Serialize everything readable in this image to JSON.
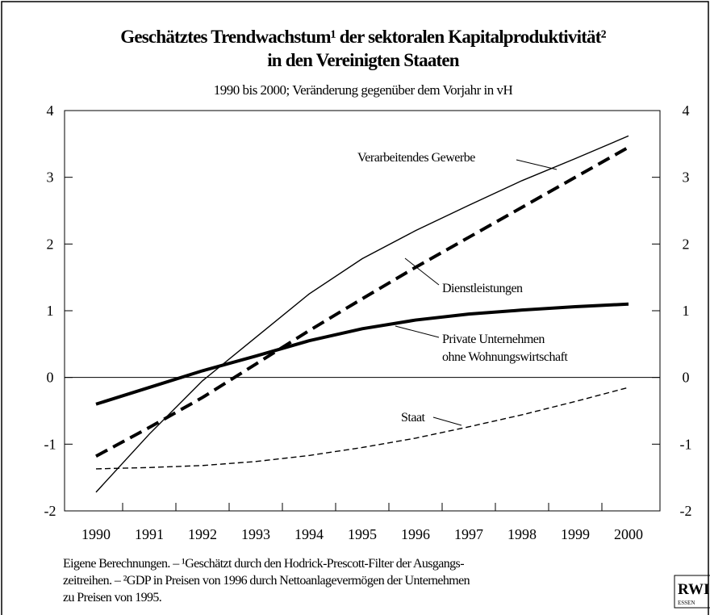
{
  "chart_data": {
    "type": "line",
    "title": [
      "Geschätztes Trendwachstum¹ der sektoralen Kapitalproduktivität²",
      "in den Vereinigten Staaten"
    ],
    "subtitle": "1990 bis 2000; Veränderung gegenüber dem Vorjahr in vH",
    "categories": [
      "1990",
      "1991",
      "1992",
      "1993",
      "1994",
      "1995",
      "1996",
      "1997",
      "1998",
      "1999",
      "2000"
    ],
    "series": [
      {
        "name": "Verarbeitendes Gewerbe",
        "color": "#000000",
        "dashed": false,
        "bold": false,
        "values": [
          -1.72,
          -0.85,
          -0.05,
          0.6,
          1.25,
          1.78,
          2.2,
          2.58,
          2.95,
          3.28,
          3.62
        ]
      },
      {
        "name": "Dienstleistungen",
        "color": "#000000",
        "dashed": true,
        "bold": true,
        "values": [
          -1.18,
          -0.75,
          -0.3,
          0.2,
          0.7,
          1.18,
          1.65,
          2.1,
          2.55,
          3.0,
          3.45
        ]
      },
      {
        "name": "Private Unternehmen ohne Wohnungswirtschaft",
        "color": "#000000",
        "dashed": false,
        "bold": true,
        "values": [
          -0.4,
          -0.15,
          0.1,
          0.32,
          0.55,
          0.73,
          0.86,
          0.95,
          1.01,
          1.06,
          1.1
        ]
      },
      {
        "name": "Staat",
        "color": "#000000",
        "dashed": true,
        "bold": false,
        "values": [
          -1.37,
          -1.35,
          -1.32,
          -1.26,
          -1.17,
          -1.05,
          -0.91,
          -0.74,
          -0.56,
          -0.36,
          -0.15
        ]
      }
    ],
    "annotations": [
      "Verarbeitendes Gewerbe",
      "Dienstleistungen",
      "Private Unternehmen",
      "ohne Wohnungswirtschaft",
      "Staat"
    ],
    "ylim": [
      -2,
      4
    ],
    "yticks": [
      -2,
      -1,
      0,
      1,
      2,
      3,
      4
    ],
    "footnote": [
      "Eigene Berechnungen. – ¹Geschätzt durch den Hodrick-Prescott-Filter der Ausgangs-",
      "zeitreihen. – ²GDP in Preisen von 1996 durch Nettoanlagevermögen der Unternehmen",
      "zu Preisen von 1995."
    ],
    "logo": [
      "RWI",
      "ESSEN"
    ]
  }
}
